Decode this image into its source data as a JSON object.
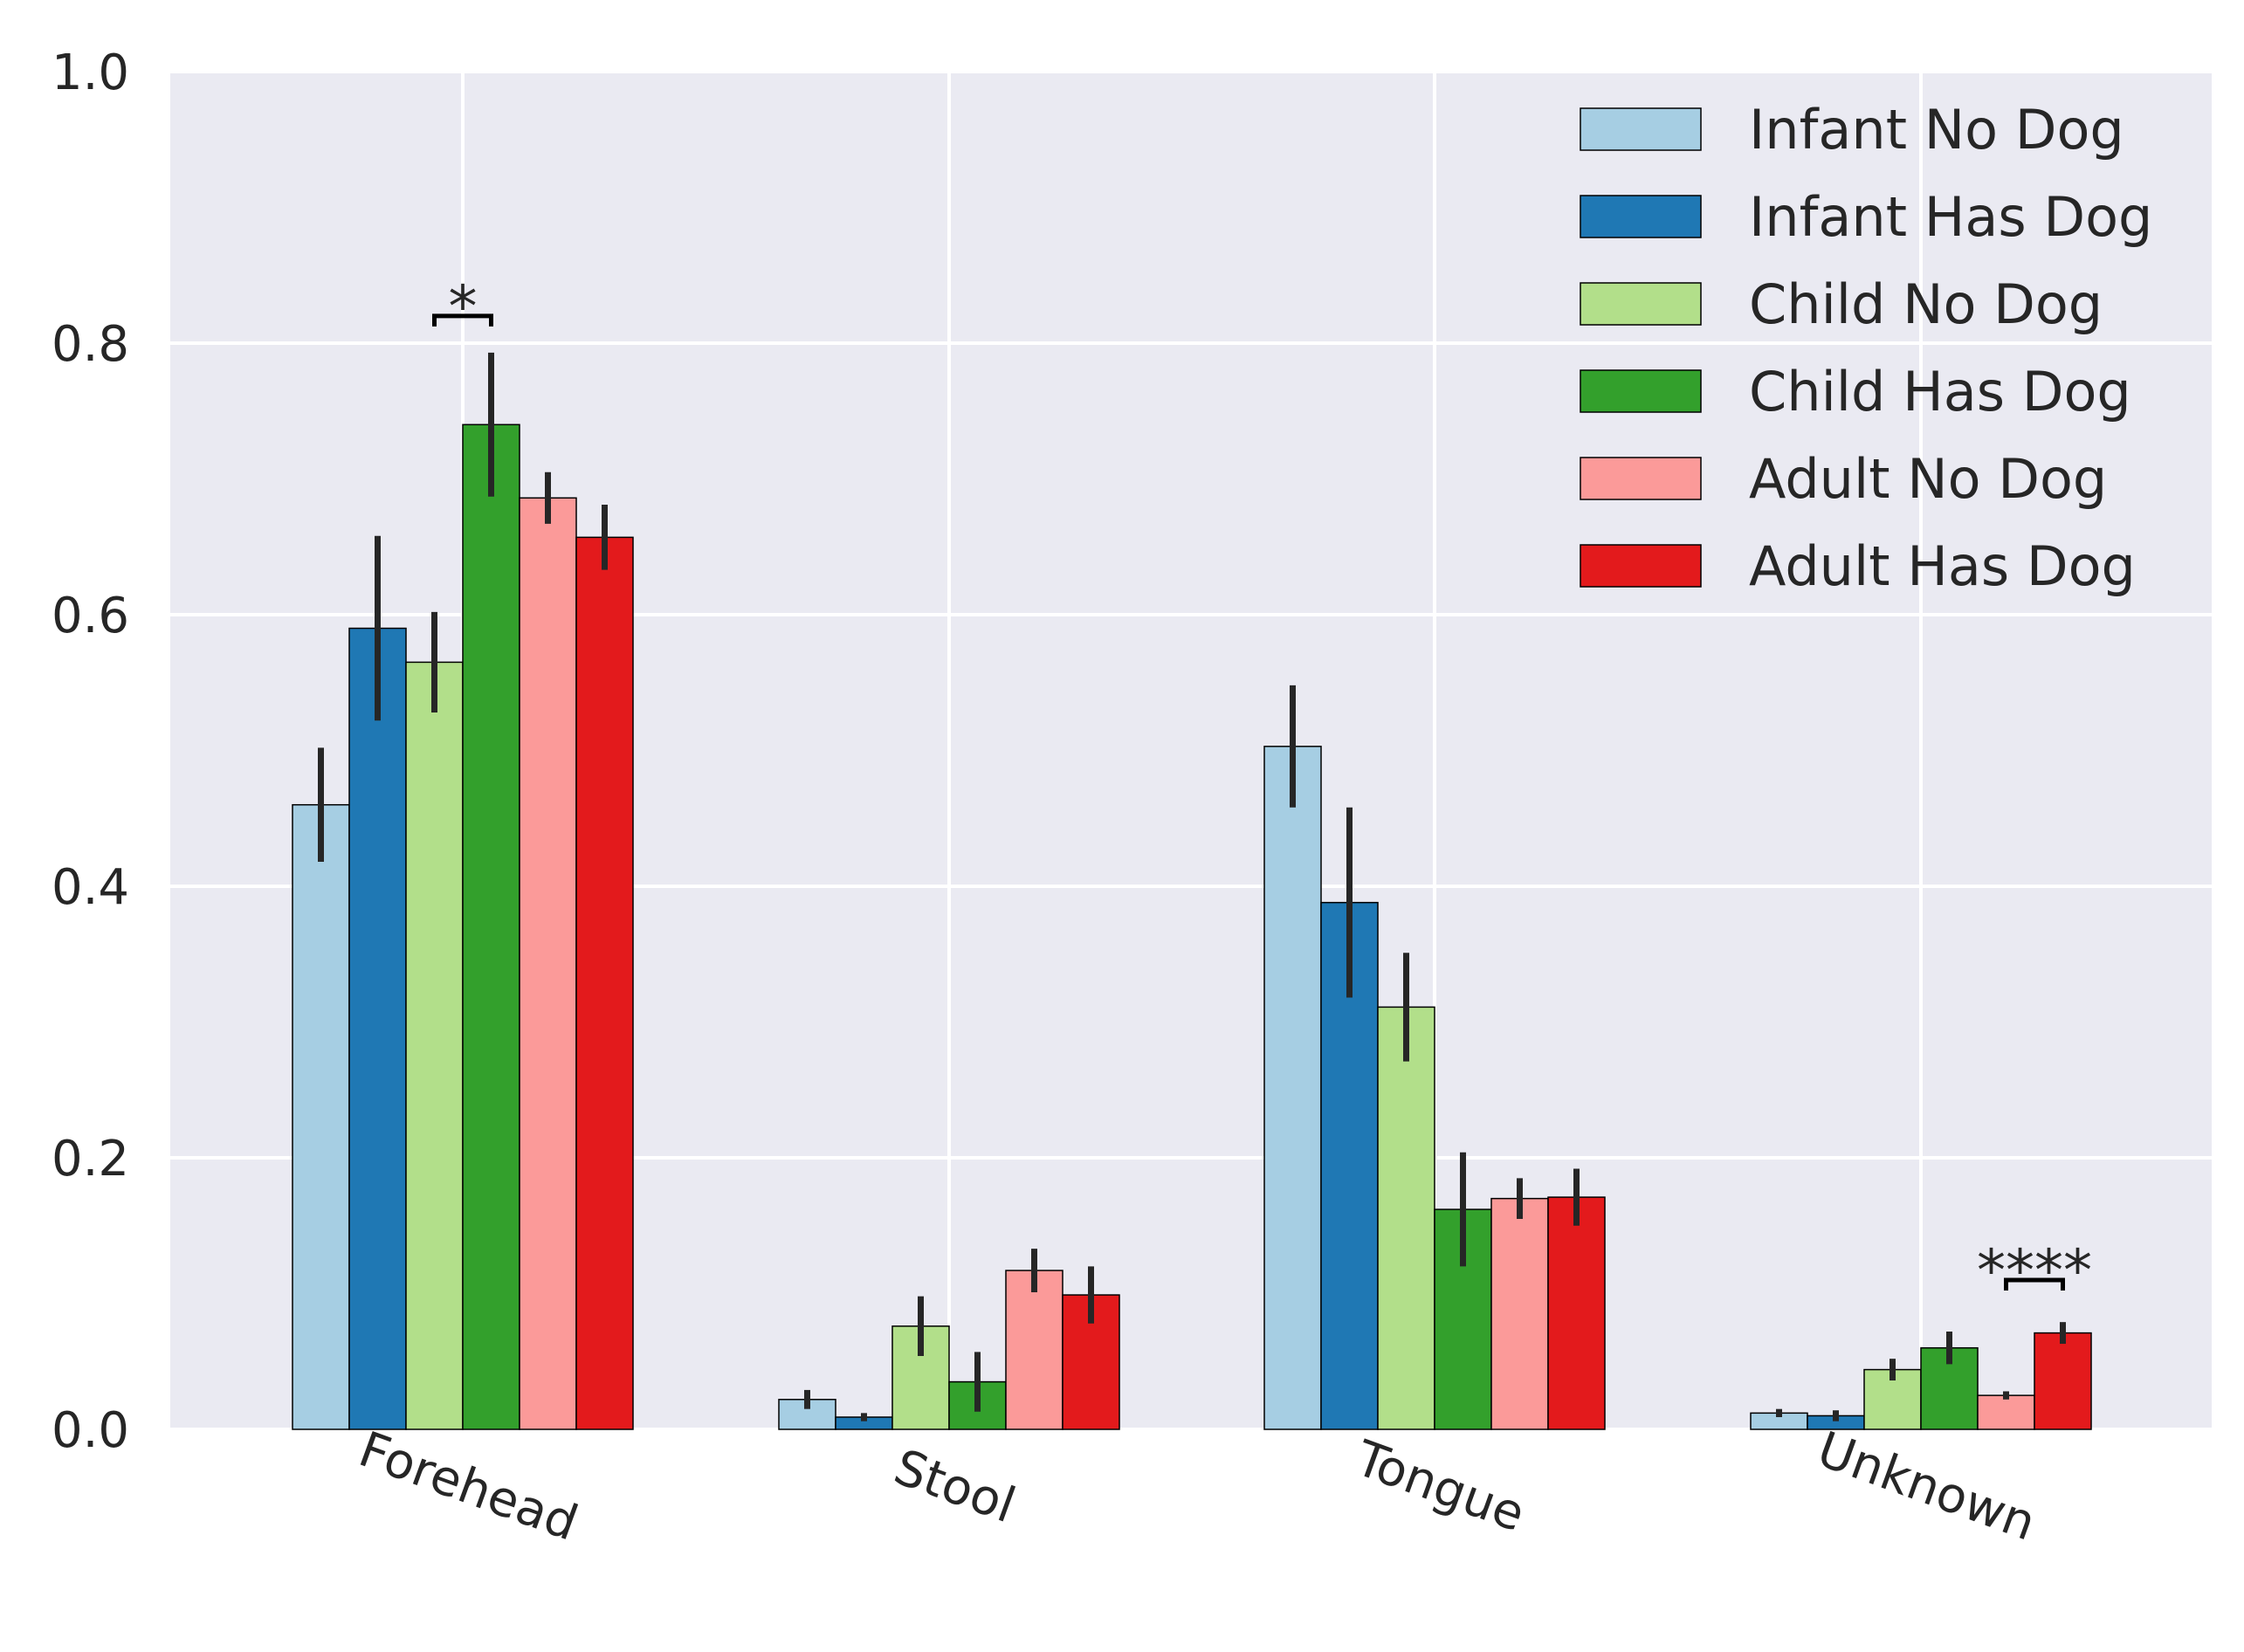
{
  "chart_data": {
    "type": "bar",
    "title": "",
    "xlabel": "",
    "ylabel": "",
    "ylim": [
      0,
      1.0
    ],
    "yticks": [
      "0.0",
      "0.2",
      "0.4",
      "0.6",
      "0.8",
      "1.0"
    ],
    "grid": true,
    "legend_position": "top-right",
    "categories": [
      "Forehead",
      "Stool",
      "Tongue",
      "Unknown"
    ],
    "series": [
      {
        "name": "Infant No Dog",
        "color": "#a6cee3",
        "values": [
          0.46,
          0.022,
          0.503,
          0.012
        ],
        "err": [
          0.042,
          0.007,
          0.045,
          0.003
        ]
      },
      {
        "name": "Infant Has Dog",
        "color": "#1f78b4",
        "values": [
          0.59,
          0.009,
          0.388,
          0.01
        ],
        "err": [
          0.068,
          0.003,
          0.07,
          0.004
        ]
      },
      {
        "name": "Child No Dog",
        "color": "#b2df8a",
        "values": [
          0.565,
          0.076,
          0.311,
          0.044
        ],
        "err": [
          0.037,
          0.022,
          0.04,
          0.008
        ]
      },
      {
        "name": "Child Has Dog",
        "color": "#33a02c",
        "values": [
          0.74,
          0.035,
          0.162,
          0.06
        ],
        "err": [
          0.053,
          0.022,
          0.042,
          0.012
        ]
      },
      {
        "name": "Adult No Dog",
        "color": "#fb9a99",
        "values": [
          0.686,
          0.117,
          0.17,
          0.025
        ],
        "err": [
          0.019,
          0.016,
          0.015,
          0.003
        ]
      },
      {
        "name": "Adult Has Dog",
        "color": "#e31a1c",
        "values": [
          0.657,
          0.099,
          0.171,
          0.071
        ],
        "err": [
          0.024,
          0.021,
          0.021,
          0.008
        ]
      }
    ],
    "annotations": [
      {
        "text": "*",
        "category": "Forehead",
        "from_series": 2,
        "to_series": 3,
        "y": 0.82
      },
      {
        "text": "****",
        "category": "Unknown",
        "from_series": 4,
        "to_series": 5,
        "y": 0.11
      }
    ]
  }
}
